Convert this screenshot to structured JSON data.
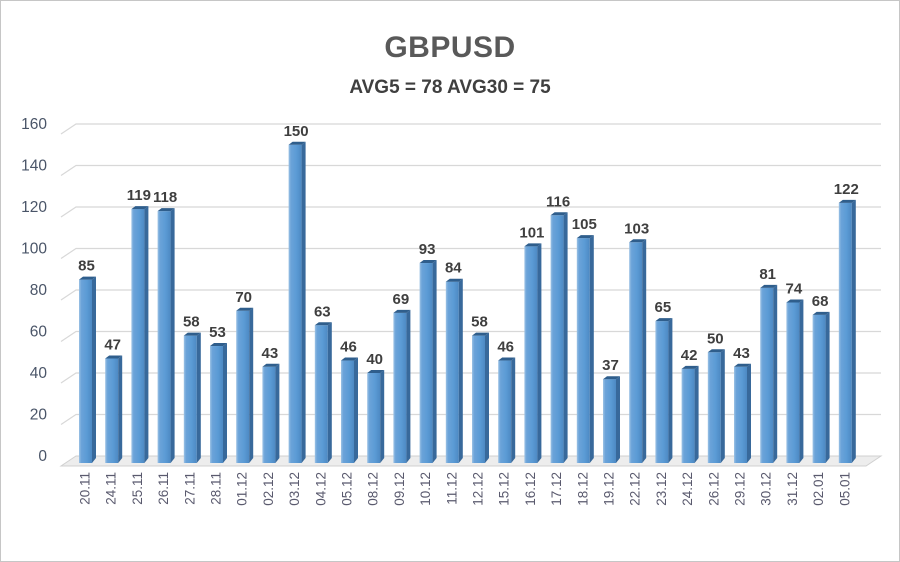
{
  "chart_data": {
    "type": "bar",
    "title": "GBPUSD",
    "subtitle": "AVG5 = 78 AVG30 = 75",
    "avg5": 78,
    "avg30": 75,
    "categories": [
      "20.11",
      "24.11",
      "25.11",
      "26.11",
      "27.11",
      "28.11",
      "01.12",
      "02.12",
      "03.12",
      "04.12",
      "05.12",
      "08.12",
      "09.12",
      "10.12",
      "11.12",
      "12.12",
      "15.12",
      "16.12",
      "17.12",
      "18.12",
      "19.12",
      "22.12",
      "23.12",
      "24.12",
      "26.12",
      "29.12",
      "30.12",
      "31.12",
      "02.01",
      "05.01"
    ],
    "values": [
      85,
      47,
      119,
      118,
      58,
      53,
      70,
      43,
      150,
      63,
      46,
      40,
      69,
      93,
      84,
      58,
      46,
      101,
      116,
      105,
      37,
      103,
      65,
      42,
      50,
      43,
      81,
      74,
      68,
      122
    ],
    "xlabel": "",
    "ylabel": "",
    "ylim": [
      0,
      160
    ],
    "yticks": [
      0,
      20,
      40,
      60,
      80,
      100,
      120,
      140,
      160
    ],
    "grid": true,
    "legend_position": "none",
    "style_3d": true,
    "colors": {
      "bar_fill": "#5b9bd5",
      "bar_fill_light": "#9cc2e5",
      "bar_fill_dark": "#4d89c3",
      "bar_side": "#38699b",
      "bar_top": "#2f5e8c",
      "gridline": "#d8d8d8",
      "floor_fill": "#ededed",
      "floor_stroke": "#d0d0d0",
      "value_label": "#3f3f3f",
      "y_axis_label": "#4a5568",
      "x_axis_label": "#5a5a6e"
    }
  }
}
